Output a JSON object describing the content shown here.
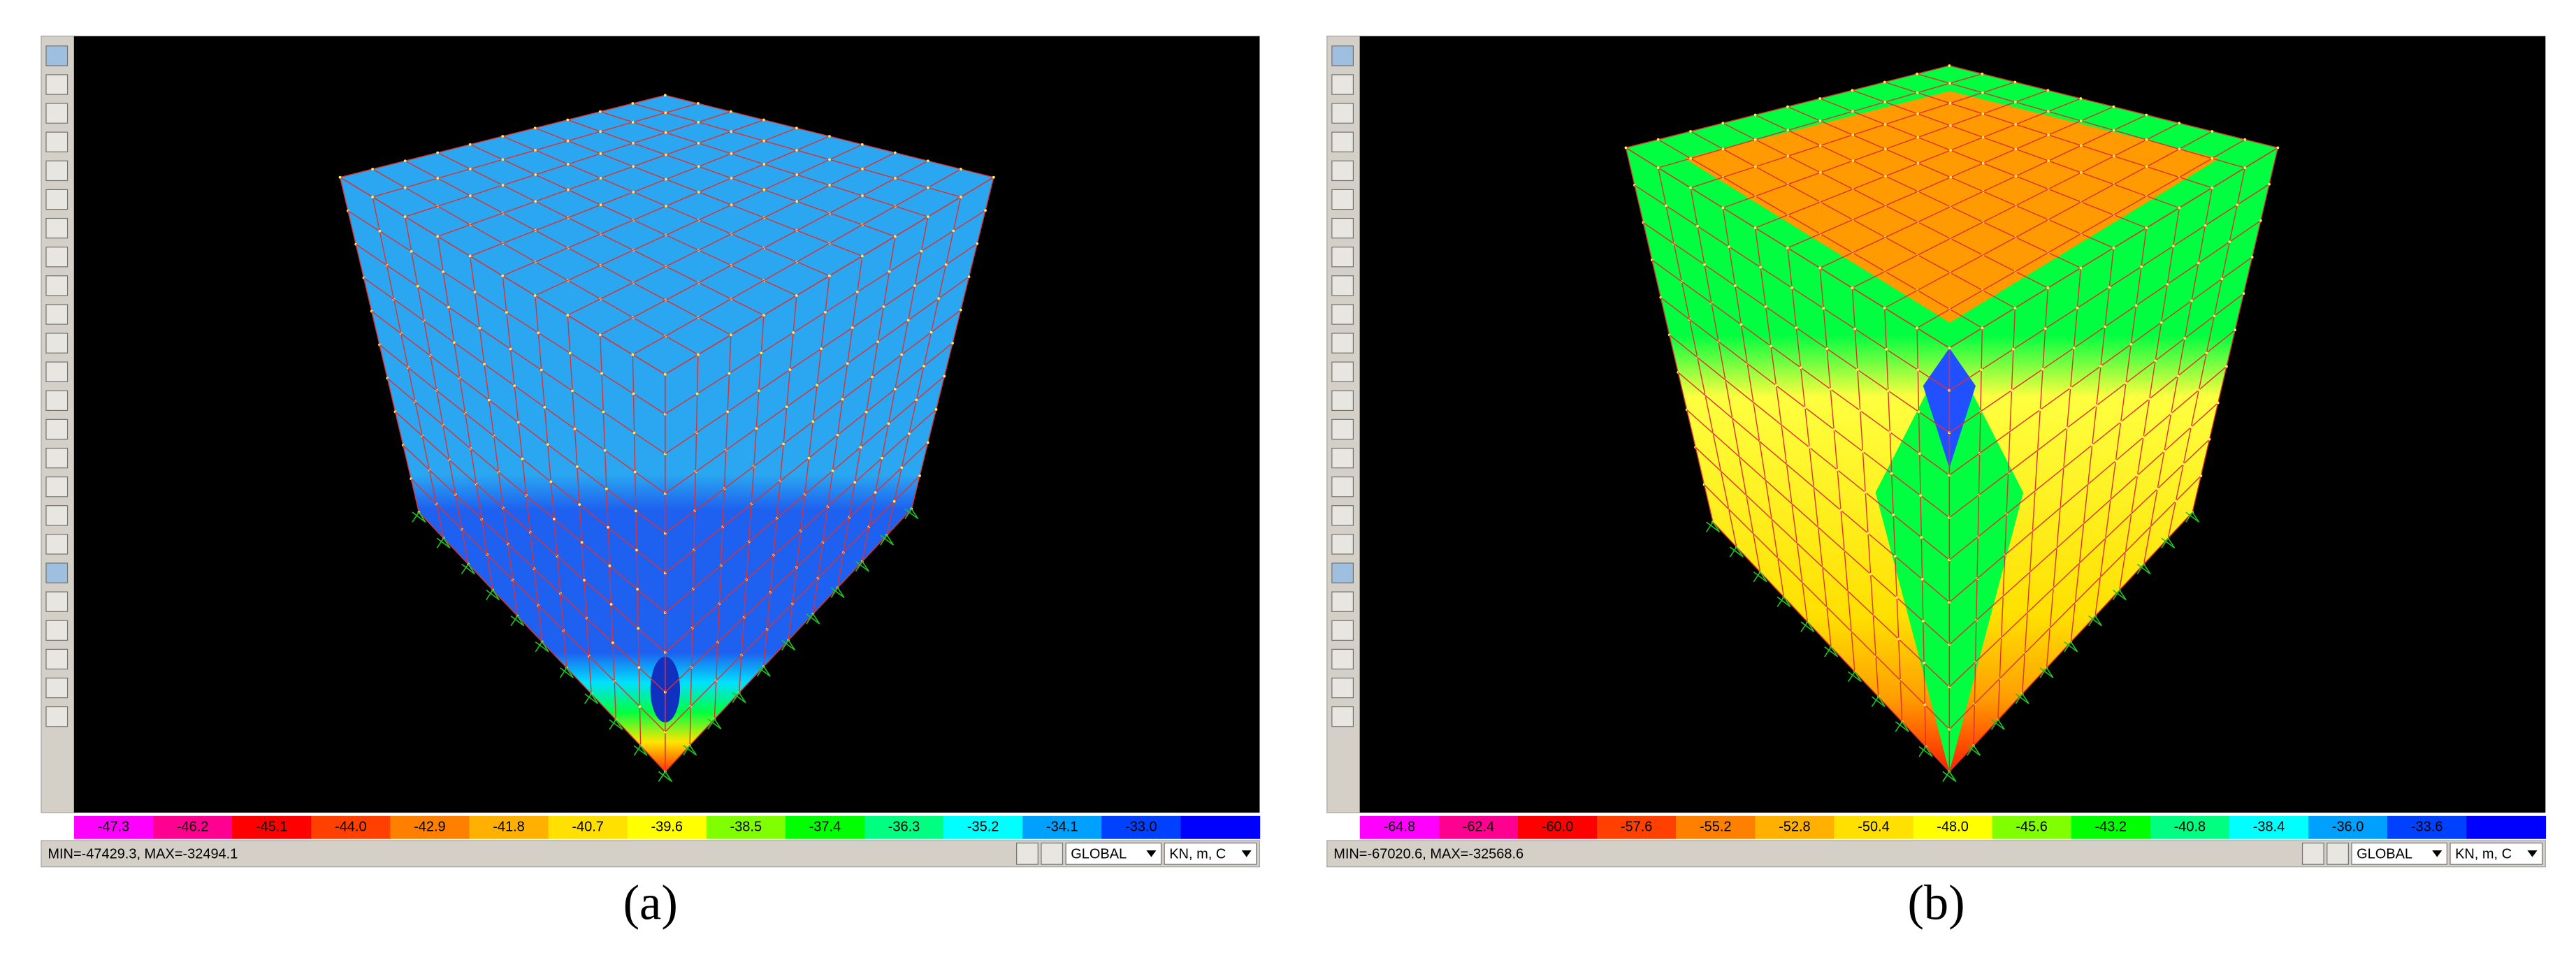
{
  "panels": [
    {
      "caption": "(a)",
      "colorbar_labels": [
        "-47.3",
        "-46.2",
        "-45.1",
        "-44.0",
        "-42.9",
        "-41.8",
        "-40.7",
        "-39.6",
        "-38.5",
        "-37.4",
        "-36.3",
        "-35.2",
        "-34.1",
        "-33.0"
      ],
      "status": "MIN=-47429.3, MAX=-32494.1",
      "coordinate_system": "GLOBAL",
      "units": "KN, m, C"
    },
    {
      "caption": "(b)",
      "colorbar_labels": [
        "-64.8",
        "-62.4",
        "-60.0",
        "-57.6",
        "-55.2",
        "-52.8",
        "-50.4",
        "-48.0",
        "-45.6",
        "-43.2",
        "-40.8",
        "-38.4",
        "-36.0",
        "-33.6"
      ],
      "status": "MIN=-67020.6, MAX=-32568.6",
      "coordinate_system": "GLOBAL",
      "units": "KN, m, C"
    }
  ]
}
